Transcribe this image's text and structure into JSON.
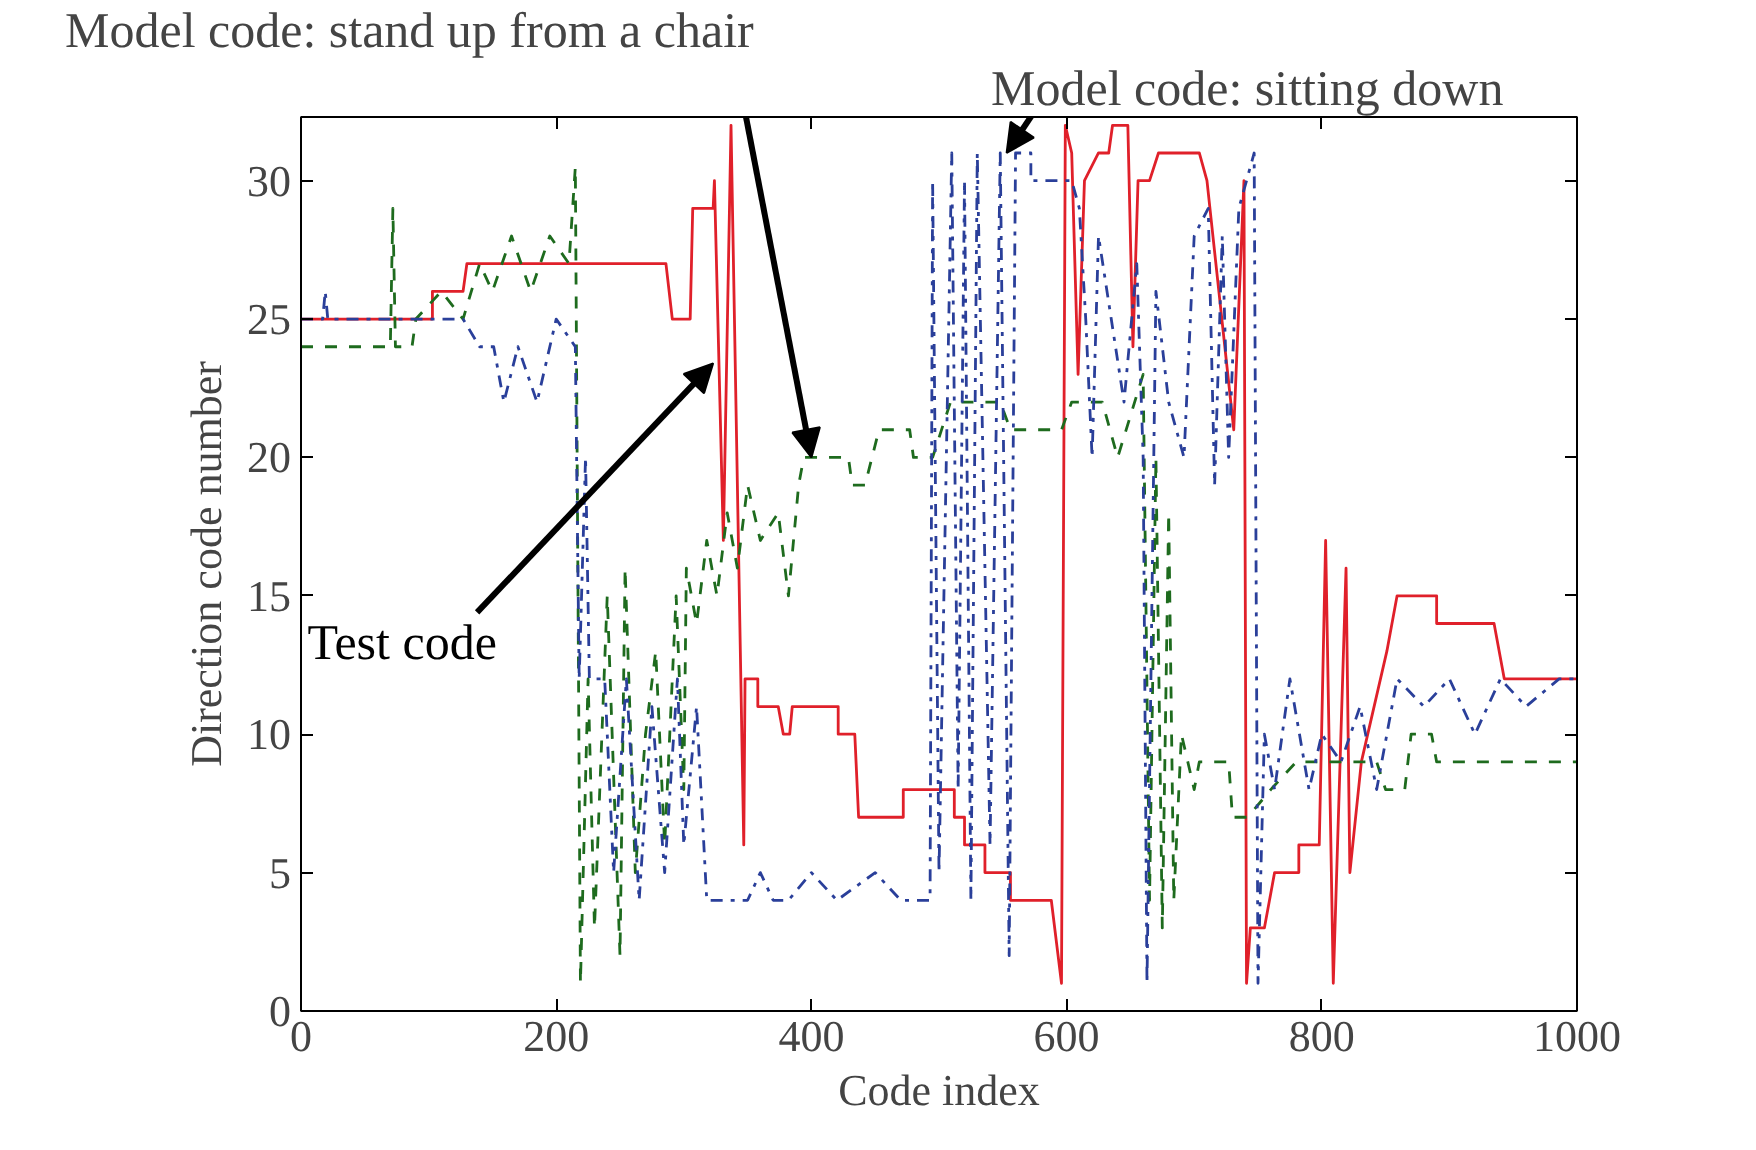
{
  "chart_data": {
    "type": "line",
    "xlabel": "Code index",
    "ylabel": "Direction code number",
    "xlim": [
      0,
      1000
    ],
    "ylim": [
      0,
      32.3
    ],
    "xticks": [
      0,
      200,
      400,
      600,
      800,
      1000
    ],
    "yticks": [
      0,
      5,
      10,
      15,
      20,
      25,
      30
    ],
    "grid": false,
    "annotations": [
      {
        "text": "Model code: stand up from a chair",
        "x": 400,
        "y": 20
      },
      {
        "text": "Model code: sitting down",
        "x": 553,
        "y": 31
      },
      {
        "text": "Test code",
        "x": 323,
        "y": 23.4
      }
    ],
    "series": [
      {
        "color": "#e0202a",
        "line_style": "solid",
        "x": [
          0,
          103,
          103,
          127,
          130,
          286,
          291,
          305,
          307,
          323,
          324,
          331,
          337,
          347,
          348,
          358,
          358,
          374,
          378,
          383,
          385,
          421,
          421,
          434,
          437,
          472,
          472,
          512,
          512,
          520,
          520,
          536,
          536,
          556,
          556,
          588,
          596,
          599,
          604,
          609,
          614,
          625,
          633,
          636,
          648,
          652,
          656,
          665,
          672,
          704,
          710,
          731,
          739,
          741,
          744,
          755,
          763,
          782,
          782,
          798,
          803,
          809,
          819,
          822,
          831,
          851,
          859,
          890,
          890,
          935,
          943,
          1000
        ],
        "values": [
          25,
          25,
          26,
          26,
          27,
          27,
          25,
          25,
          29,
          29,
          30,
          17,
          32,
          6,
          12,
          12,
          11,
          11,
          10,
          10,
          11,
          11,
          10,
          10,
          7,
          7,
          8,
          8,
          7,
          7,
          6,
          6,
          5,
          5,
          4,
          4,
          1,
          32,
          31,
          23,
          30,
          31,
          31,
          32,
          32,
          24,
          30,
          30,
          31,
          31,
          30,
          21,
          30,
          1,
          3,
          3,
          5,
          5,
          6,
          6,
          17,
          1,
          16,
          5,
          9,
          13,
          15,
          15,
          14,
          14,
          12,
          12
        ]
      },
      {
        "color": "#1e6b1e",
        "line_style": "dashed",
        "x": [
          0,
          70,
          72,
          74,
          87,
          90,
          110,
          127,
          140,
          150,
          165,
          180,
          195,
          210,
          215,
          219,
          225,
          230,
          240,
          250,
          254,
          262,
          270,
          278,
          285,
          294,
          300,
          302,
          310,
          318,
          326,
          334,
          342,
          350,
          360,
          374,
          382,
          390,
          394,
          429,
          432,
          442,
          453,
          477,
          480,
          495,
          509,
          548,
          556,
          596,
          604,
          628,
          640,
          660,
          665,
          670,
          675,
          680,
          684,
          690,
          700,
          704,
          727,
          730,
          742,
          760,
          780,
          800,
          843,
          850,
          865,
          870,
          886,
          890,
          1000
        ],
        "values": [
          24,
          24,
          29,
          24,
          24,
          25,
          26,
          25,
          27,
          26,
          28,
          26,
          28,
          27,
          30.5,
          1,
          12,
          3,
          15,
          2,
          16,
          5,
          10,
          13,
          6,
          15,
          8,
          16,
          14,
          17,
          15,
          18,
          16,
          19,
          17,
          18,
          15,
          19,
          20,
          20,
          19,
          19,
          21,
          21,
          20,
          20,
          22,
          22,
          21,
          21,
          22,
          22,
          20,
          23,
          4,
          20,
          3,
          18,
          4,
          10,
          8,
          9,
          9,
          7,
          7,
          8,
          9,
          9,
          9,
          8,
          8,
          10,
          10,
          9,
          9
        ]
      },
      {
        "color": "#2a3f9a",
        "line_style": "dashdot",
        "x": [
          0,
          17,
          19,
          21,
          127,
          140,
          151,
          159,
          170,
          185,
          200,
          215,
          218,
          223,
          226,
          238,
          245,
          255,
          265,
          275,
          285,
          295,
          300,
          310,
          318,
          350,
          360,
          370,
          382,
          400,
          420,
          450,
          470,
          493,
          495,
          500,
          510,
          515,
          520,
          525,
          530,
          540,
          548,
          555,
          560,
          572,
          572,
          604,
          610,
          615,
          620,
          625,
          635,
          645,
          655,
          660,
          663,
          670,
          680,
          692,
          700,
          711,
          716,
          722,
          727,
          735,
          747,
          750,
          755,
          763,
          775,
          790,
          800,
          815,
          830,
          843,
          859,
          880,
          900,
          920,
          940,
          960,
          986,
          1000
        ],
        "values": [
          25,
          25,
          26,
          25,
          25,
          24,
          24,
          22,
          24,
          22,
          25,
          24,
          12,
          20,
          12,
          12,
          5,
          12,
          4,
          11,
          5,
          12,
          6,
          11,
          4,
          4,
          5,
          4,
          4,
          5,
          4,
          5,
          4,
          4,
          30,
          5,
          31,
          8,
          30,
          4,
          31,
          6,
          31,
          2,
          31,
          31,
          30,
          30,
          29,
          25,
          20,
          28,
          25,
          22,
          27,
          20,
          1,
          26,
          22,
          20,
          28,
          29,
          19,
          28,
          20,
          29,
          31,
          1,
          10,
          8,
          12,
          8,
          10,
          9,
          11,
          8,
          12,
          11,
          12,
          10,
          12,
          11,
          12,
          12
        ]
      }
    ]
  }
}
